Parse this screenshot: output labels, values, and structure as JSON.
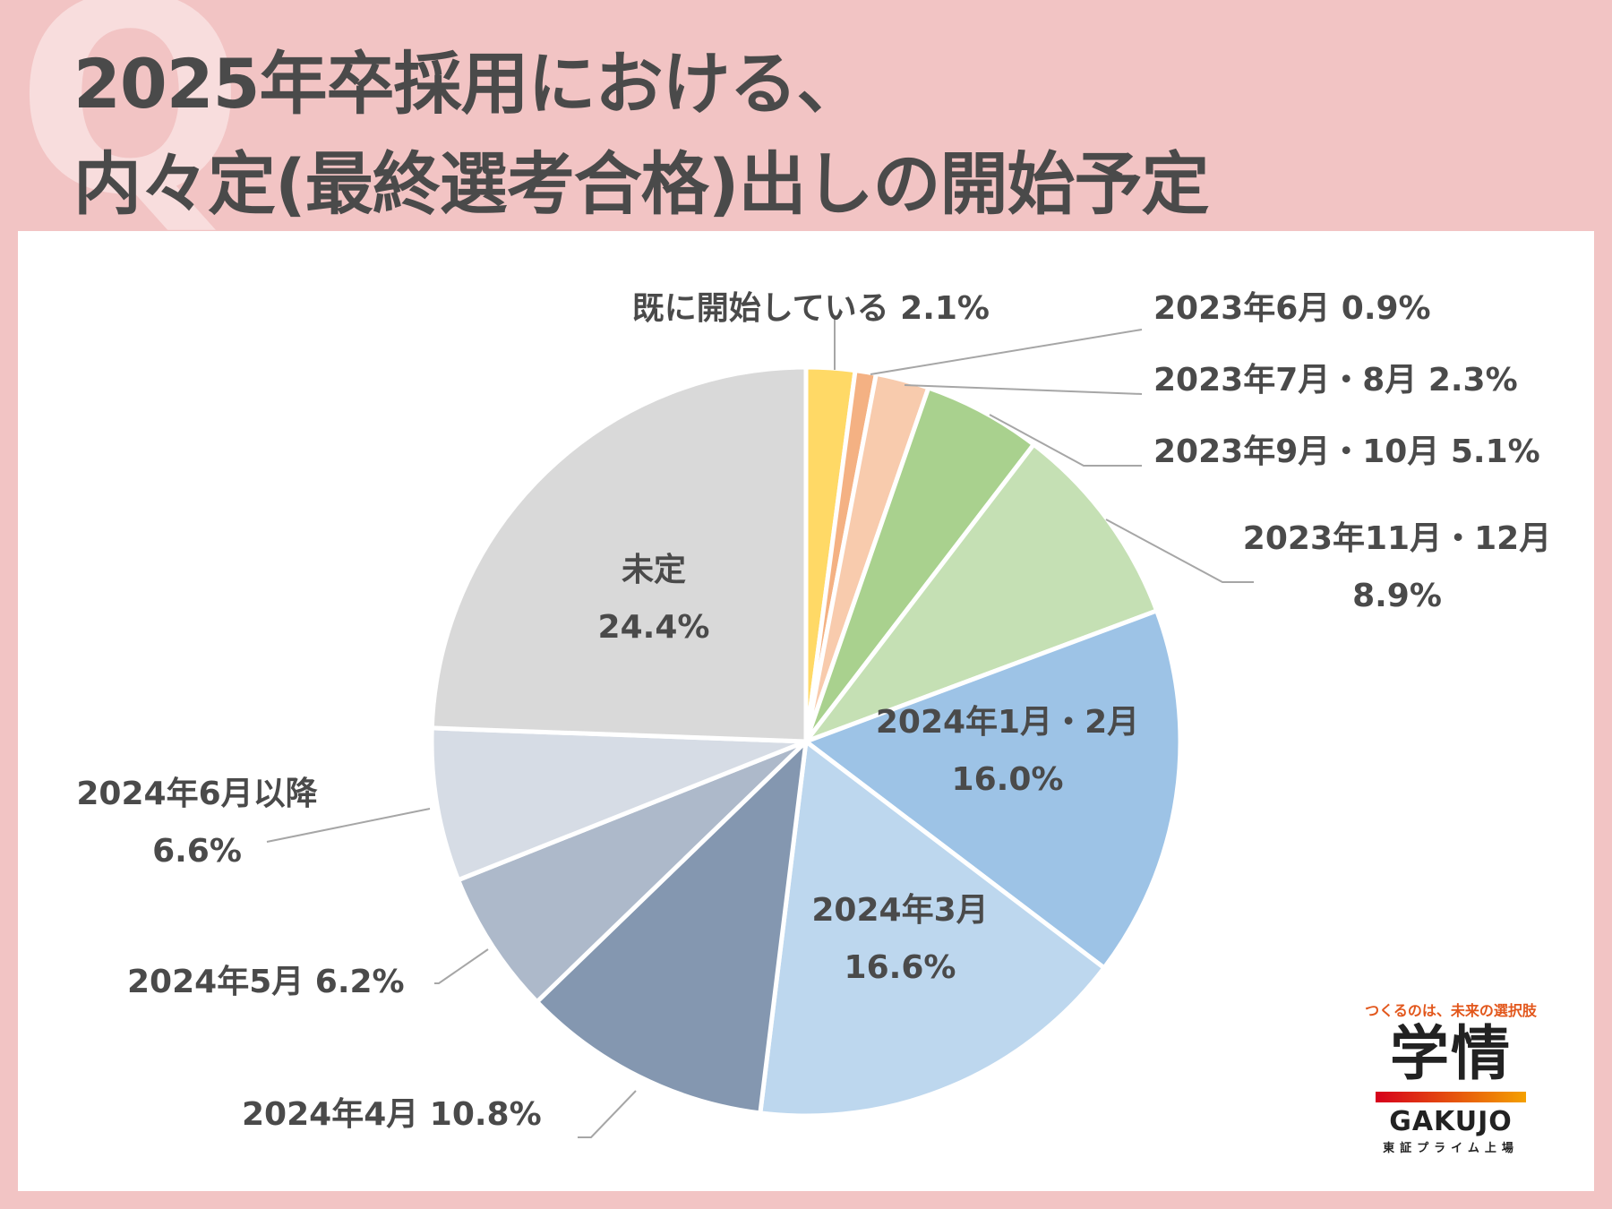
{
  "deco_letter": "Q",
  "title_lines": [
    "2025年卒採用における、",
    "内々定(最終選考合格)出しの開始予定"
  ],
  "chart_data": {
    "type": "pie",
    "start_angle_deg": 0,
    "direction": "clockwise",
    "slices": [
      {
        "label": "既に開始している",
        "value": 2.1,
        "value_label": "2.1%",
        "color": "#ffd966"
      },
      {
        "label": "2023年6月",
        "value": 0.9,
        "value_label": "0.9%",
        "color": "#f4b183"
      },
      {
        "label": "2023年7月・8月",
        "value": 2.3,
        "value_label": "2.3%",
        "color": "#f8cbad"
      },
      {
        "label": "2023年9月・10月",
        "value": 5.1,
        "value_label": "5.1%",
        "color": "#a9d18e"
      },
      {
        "label": "2023年11月・12月",
        "value": 8.9,
        "value_label": "8.9%",
        "color": "#c5e0b4"
      },
      {
        "label": "2024年1月・2月",
        "value": 16.0,
        "value_label": "16.0%",
        "color": "#9dc3e6"
      },
      {
        "label": "2024年3月",
        "value": 16.6,
        "value_label": "16.6%",
        "color": "#bdd7ee"
      },
      {
        "label": "2024年4月",
        "value": 10.8,
        "value_label": "10.8%",
        "color": "#8497b0"
      },
      {
        "label": "2024年5月",
        "value": 6.2,
        "value_label": "6.2%",
        "color": "#adb9ca"
      },
      {
        "label": "2024年6月以降",
        "value": 6.6,
        "value_label": "6.6%",
        "color": "#d6dce5"
      },
      {
        "label": "未定",
        "value": 24.4,
        "value_label": "24.4%",
        "color": "#d9d9d9"
      }
    ]
  },
  "logo": {
    "tagline": "つくるのは、未来の選択肢",
    "kanji": "学情",
    "english": "GAKUJO",
    "subtitle": "東証プライム上場"
  }
}
